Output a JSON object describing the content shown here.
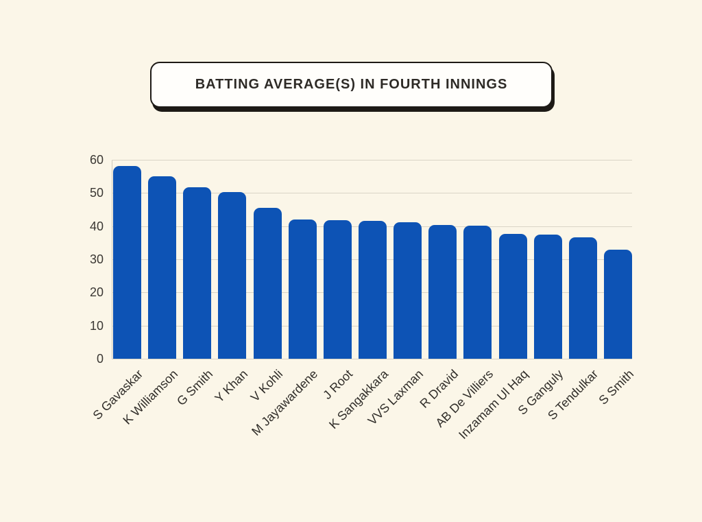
{
  "page": {
    "background_color": "#fbf6e8"
  },
  "title": {
    "text": "BATTING AVERAGE(S) IN FOURTH INNINGS",
    "box_background": "#fffefb",
    "border_color": "#1d1a16",
    "shadow_color": "#1d1a16",
    "text_color": "#2d2a26"
  },
  "chart_data": {
    "type": "bar",
    "title": "BATTING AVERAGE(S) IN FOURTH INNINGS",
    "categories": [
      "S Gavaskar",
      "K Williamson",
      "G Smith",
      "Y Khan",
      "V Kohli",
      "M Jayawardene",
      "J Root",
      "K Sangakkara",
      "VVS Laxman",
      "R Dravid",
      "AB De Villiers",
      "Inzamam Ul Haq",
      "S Ganguly",
      "S Tendulkar",
      "S Smith"
    ],
    "values": [
      58.2,
      55.0,
      51.7,
      50.3,
      45.5,
      42.0,
      41.8,
      41.6,
      41.2,
      40.4,
      40.2,
      37.7,
      37.4,
      36.6,
      33.0
    ],
    "xlabel": "",
    "ylabel": "",
    "ylim": [
      0,
      60
    ],
    "yticks": [
      0,
      10,
      20,
      30,
      40,
      50,
      60
    ],
    "grid": true,
    "legend_position": "none",
    "bar_color": "#0d53b5",
    "gridline_color": "#d9d4c6",
    "axis_color": "#cfcabc",
    "tick_label_color": "#3a3733",
    "category_label_color": "#302d29"
  }
}
